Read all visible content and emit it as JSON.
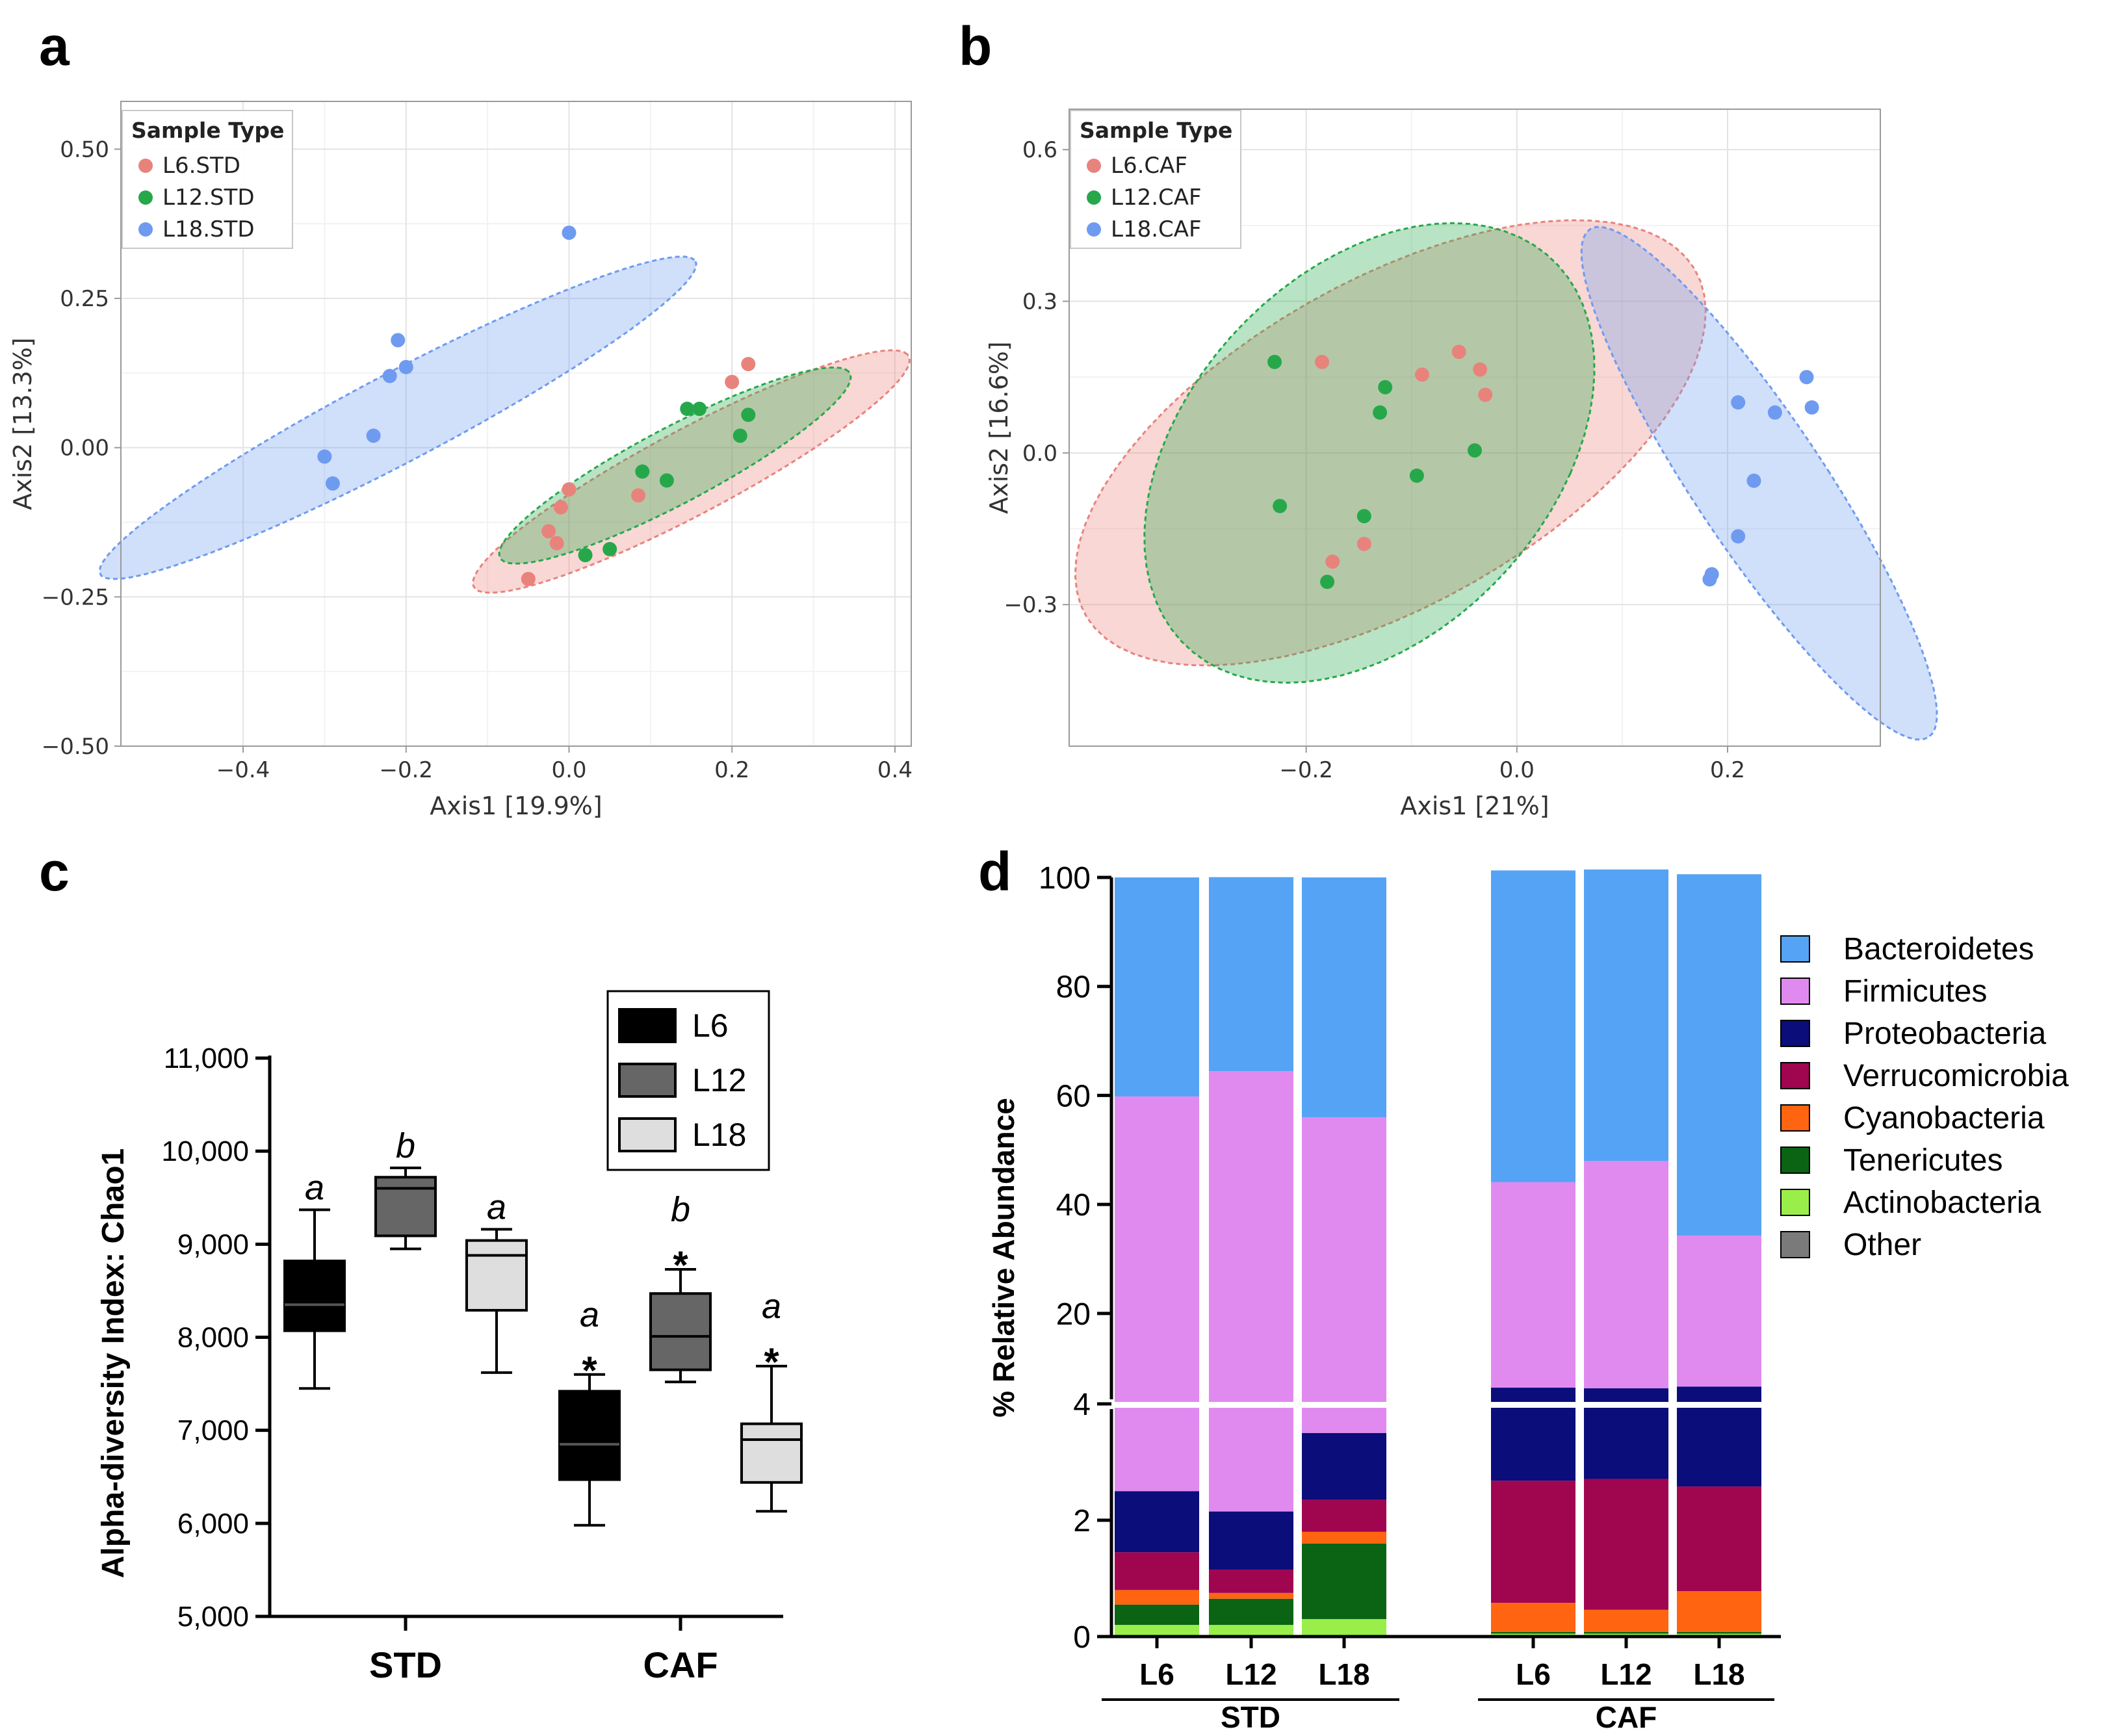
{
  "panels": {
    "a": "a",
    "b": "b",
    "c": "c",
    "d": "d"
  },
  "chart_data": [
    {
      "id": "a",
      "type": "scatter",
      "title": "",
      "xlabel": "Axis1 [19.9%]",
      "ylabel": "Axis2 [13.3%]",
      "xlim": [
        -0.55,
        0.42
      ],
      "ylim": [
        -0.5,
        0.58
      ],
      "xticks": [
        -0.4,
        -0.2,
        0.0,
        0.2,
        0.4
      ],
      "xtick_labels": [
        "−0.4",
        "−0.2",
        "0.0",
        "0.2",
        "0.4"
      ],
      "yticks": [
        -0.5,
        -0.25,
        0.0,
        0.25,
        0.5
      ],
      "ytick_labels": [
        "−0.50",
        "−0.25",
        "0.00",
        "0.25",
        "0.50"
      ],
      "legend_title": "Sample Type",
      "grid": true,
      "series": [
        {
          "name": "L6.STD",
          "color": "#e8837c",
          "points": [
            [
              -0.05,
              -0.22
            ],
            [
              -0.025,
              -0.14
            ],
            [
              -0.01,
              -0.1
            ],
            [
              -0.015,
              -0.16
            ],
            [
              0.0,
              -0.07
            ],
            [
              0.085,
              -0.08
            ],
            [
              0.2,
              0.11
            ],
            [
              0.22,
              0.14
            ]
          ],
          "ellipse": {
            "cx": 0.15,
            "cy": -0.04,
            "rx": 0.33,
            "ry": 0.065,
            "angle_deg": 36.5
          }
        },
        {
          "name": "L12.STD",
          "color": "#26a84a",
          "points": [
            [
              0.02,
              -0.18
            ],
            [
              0.05,
              -0.17
            ],
            [
              0.09,
              -0.04
            ],
            [
              0.12,
              -0.055
            ],
            [
              0.145,
              0.065
            ],
            [
              0.16,
              0.065
            ],
            [
              0.21,
              0.02
            ],
            [
              0.22,
              0.055
            ]
          ],
          "ellipse": {
            "cx": 0.13,
            "cy": -0.03,
            "rx": 0.265,
            "ry": 0.058,
            "angle_deg": 36.5
          }
        },
        {
          "name": "L18.STD",
          "color": "#6e9bf0",
          "points": [
            [
              -0.3,
              -0.015
            ],
            [
              -0.29,
              -0.06
            ],
            [
              -0.24,
              0.02
            ],
            [
              -0.22,
              0.12
            ],
            [
              -0.21,
              0.18
            ],
            [
              -0.2,
              0.135
            ],
            [
              0.0,
              0.36
            ]
          ],
          "ellipse": {
            "cx": -0.21,
            "cy": 0.05,
            "rx": 0.45,
            "ry": 0.068,
            "angle_deg": 36.0
          }
        }
      ]
    },
    {
      "id": "b",
      "type": "scatter",
      "title": "",
      "xlabel": "Axis1 [21%]",
      "ylabel": "Axis2 [16.6%]",
      "xlim": [
        -0.425,
        0.345
      ],
      "ylim": [
        -0.58,
        0.68
      ],
      "xticks": [
        -0.2,
        0.0,
        0.2
      ],
      "xtick_labels": [
        "−0.2",
        "0.0",
        "0.2"
      ],
      "yticks": [
        -0.3,
        0.0,
        0.3,
        0.6
      ],
      "ytick_labels": [
        "−0.3",
        "0.0",
        "0.3",
        "0.6"
      ],
      "legend_title": "Sample Type",
      "grid": true,
      "series": [
        {
          "name": "L6.CAF",
          "color": "#e8837c",
          "points": [
            [
              -0.185,
              0.18
            ],
            [
              -0.09,
              0.155
            ],
            [
              -0.055,
              0.2
            ],
            [
              -0.035,
              0.165
            ],
            [
              -0.03,
              0.115
            ],
            [
              -0.145,
              -0.18
            ],
            [
              -0.175,
              -0.215
            ]
          ],
          "ellipse": {
            "cx": -0.12,
            "cy": 0.02,
            "rx": 0.22,
            "ry": 0.485,
            "angle_deg": -28.0
          }
        },
        {
          "name": "L12.CAF",
          "color": "#26a84a",
          "points": [
            [
              -0.23,
              0.18
            ],
            [
              -0.125,
              0.13
            ],
            [
              -0.13,
              0.08
            ],
            [
              -0.225,
              -0.105
            ],
            [
              -0.145,
              -0.125
            ],
            [
              -0.095,
              -0.045
            ],
            [
              -0.04,
              0.005
            ],
            [
              -0.18,
              -0.255
            ]
          ],
          "ellipse": {
            "cx": -0.14,
            "cy": 0.0,
            "rx": 0.195,
            "ry": 0.463,
            "angle_deg": -12.0
          }
        },
        {
          "name": "L18.CAF",
          "color": "#6e9bf0",
          "points": [
            [
              0.21,
              0.1
            ],
            [
              0.245,
              0.08
            ],
            [
              0.275,
              0.15
            ],
            [
              0.28,
              0.09
            ],
            [
              0.225,
              -0.055
            ],
            [
              0.21,
              -0.165
            ],
            [
              0.185,
              -0.24
            ],
            [
              0.183,
              -0.25
            ]
          ],
          "ellipse": {
            "cx": 0.23,
            "cy": -0.06,
            "rx": 0.07,
            "ry": 0.53,
            "angle_deg": 17.0
          }
        }
      ]
    },
    {
      "id": "c",
      "type": "box",
      "title": "",
      "xlabel": "",
      "ylabel": "Alpha-diversity Index: Chao1",
      "ylim": [
        5000,
        11000
      ],
      "yticks": [
        5000,
        6000,
        7000,
        8000,
        9000,
        10000,
        11000
      ],
      "ytick_labels": [
        "5,000",
        "6,000",
        "7,000",
        "8,000",
        "9,000",
        "10,000",
        "11,000"
      ],
      "categories": [
        "STD",
        "CAF"
      ],
      "series": [
        {
          "name": "L6",
          "color": "#000000",
          "median_color": "#555555",
          "boxes": [
            {
              "min": 7450,
              "q1": 8070,
              "median": 8350,
              "q3": 8820,
              "max": 9370
            },
            {
              "min": 5980,
              "q1": 6470,
              "median": 6850,
              "q3": 7420,
              "max": 7600
            }
          ]
        },
        {
          "name": "L12",
          "color": "#666666",
          "median_color": "#000000",
          "boxes": [
            {
              "min": 8950,
              "q1": 9090,
              "median": 9600,
              "q3": 9720,
              "max": 9820
            },
            {
              "min": 7520,
              "q1": 7650,
              "median": 8010,
              "q3": 8470,
              "max": 8730
            }
          ]
        },
        {
          "name": "L18",
          "color": "#dedede",
          "median_color": "#000000",
          "boxes": [
            {
              "min": 7620,
              "q1": 8290,
              "median": 8880,
              "q3": 9040,
              "max": 9160
            },
            {
              "min": 6130,
              "q1": 6440,
              "median": 6900,
              "q3": 7070,
              "max": 7690
            }
          ]
        }
      ],
      "annotations": [
        {
          "group": 0,
          "series": 0,
          "letter": "a",
          "star": ""
        },
        {
          "group": 0,
          "series": 1,
          "letter": "b",
          "star": ""
        },
        {
          "group": 0,
          "series": 2,
          "letter": "a",
          "star": ""
        },
        {
          "group": 1,
          "series": 0,
          "letter": "a",
          "star": "*"
        },
        {
          "group": 1,
          "series": 1,
          "letter": "b",
          "star": "*"
        },
        {
          "group": 1,
          "series": 2,
          "letter": "a",
          "star": "*"
        }
      ]
    },
    {
      "id": "d",
      "type": "bar",
      "stacked": true,
      "title": "",
      "xlabel": "",
      "ylabel": "% Relative Abundance",
      "ylim": [
        0,
        100
      ],
      "axis_break_at": 4,
      "lower_yticks": [
        0,
        2,
        4
      ],
      "upper_yticks": [
        20,
        40,
        60,
        80,
        100
      ],
      "categories": [
        "L6",
        "L12",
        "L18",
        "L6",
        "L12",
        "L18"
      ],
      "groups": [
        {
          "label": "STD",
          "members": [
            0,
            1,
            2
          ]
        },
        {
          "label": "CAF",
          "members": [
            3,
            4,
            5
          ]
        }
      ],
      "series": [
        {
          "name": "Bacteroidetes",
          "color": "#55a3f5",
          "values": [
            40.2,
            35.6,
            44.0,
            57.2,
            53.5,
            66.3
          ]
        },
        {
          "name": "Firmicutes",
          "color": "#e08af0",
          "values": [
            57.3,
            62.3,
            52.5,
            37.7,
            41.7,
            27.7
          ]
        },
        {
          "name": "Proteobacteria",
          "color": "#0a0d7a",
          "values": [
            1.05,
            1.0,
            1.15,
            3.7,
            3.55,
            4.0
          ]
        },
        {
          "name": "Verrucomicrobia",
          "color": "#a00550",
          "values": [
            0.65,
            0.4,
            0.55,
            2.1,
            2.25,
            1.8
          ]
        },
        {
          "name": "Cyanobacteria",
          "color": "#ff6410",
          "values": [
            0.25,
            0.1,
            0.2,
            0.5,
            0.38,
            0.7
          ]
        },
        {
          "name": "Tenericutes",
          "color": "#0a6414",
          "values": [
            0.35,
            0.45,
            1.3,
            0.03,
            0.03,
            0.03
          ]
        },
        {
          "name": "Actinobacteria",
          "color": "#9aee4a",
          "values": [
            0.2,
            0.2,
            0.3,
            0.05,
            0.05,
            0.05
          ]
        },
        {
          "name": "Other",
          "color": "#7a7a7a",
          "values": [
            0.0,
            0.0,
            0.0,
            0.0,
            0.0,
            0.0
          ]
        }
      ]
    }
  ]
}
